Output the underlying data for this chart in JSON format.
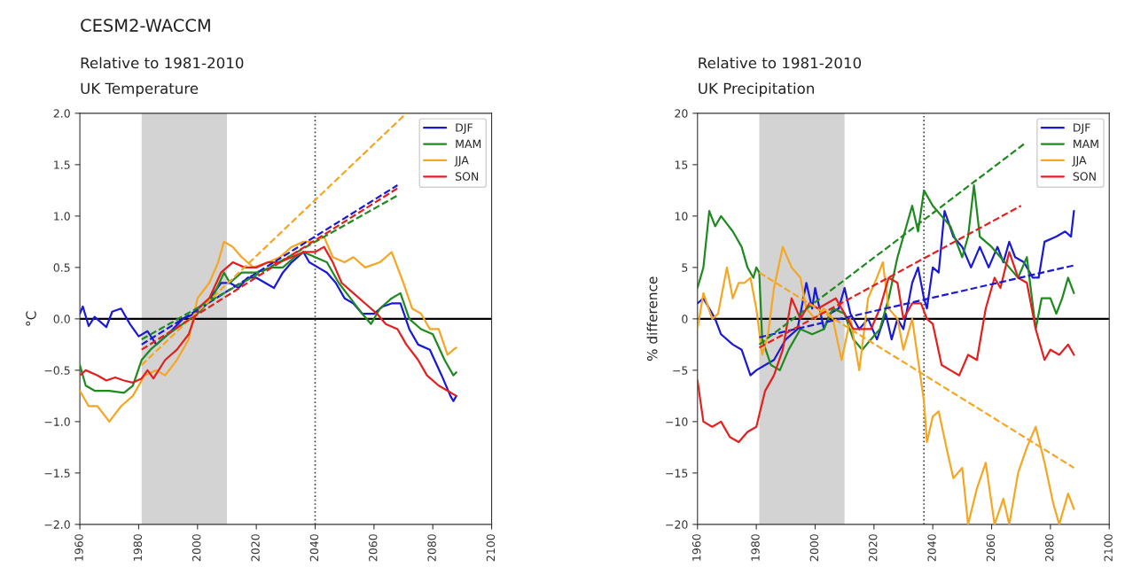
{
  "chart_data": [
    {
      "type": "line",
      "title": "CESM2-WACCM",
      "subtitle": "Relative to 1981-2010\nUK Temperature",
      "ylabel": "°C",
      "xlim": [
        1960,
        2100
      ],
      "xticks": [
        1960,
        1980,
        2000,
        2020,
        2040,
        2060,
        2080,
        2100
      ],
      "ylim": [
        -2.0,
        2.0
      ],
      "yticks": [
        {
          "value": -2.0,
          "label": "−2.0"
        },
        {
          "value": -1.5,
          "label": "−1.5"
        },
        {
          "value": -1.0,
          "label": "−1.0"
        },
        {
          "value": -0.5,
          "label": "−0.5"
        },
        {
          "value": 0.0,
          "label": "0.0"
        },
        {
          "value": 0.5,
          "label": "0.5"
        },
        {
          "value": 1.0,
          "label": "1.0"
        },
        {
          "value": 1.5,
          "label": "1.5"
        },
        {
          "value": 2.0,
          "label": "2.0"
        }
      ],
      "grid": false,
      "legend": "top right",
      "bands": [
        {
          "axis": "x",
          "from": 1981,
          "to": 2010,
          "color": "#d3d3d3"
        }
      ],
      "ref_lines": [
        {
          "axis": "y",
          "value": 0,
          "color": "#000000",
          "line_style": "solid"
        },
        {
          "axis": "x",
          "value": 2040,
          "color": "#404040",
          "line_style": "dotted"
        }
      ],
      "series": [
        {
          "name": "DJF",
          "color": "#1a1ad6",
          "line_style": "solid",
          "x": [
            1960,
            1961,
            1963,
            1965,
            1969,
            1971,
            1974,
            1977,
            1980,
            1983,
            1986,
            1990,
            1995,
            1999,
            2003,
            2008,
            2011,
            2014,
            2017,
            2020,
            2023,
            2026,
            2029,
            2032,
            2036,
            2038,
            2041,
            2044,
            2047,
            2050,
            2053,
            2056,
            2060,
            2063,
            2066,
            2069,
            2072,
            2075,
            2079,
            2083,
            2086,
            2087,
            2088
          ],
          "values": [
            0.05,
            0.12,
            -0.07,
            0.02,
            -0.08,
            0.07,
            0.1,
            -0.05,
            -0.17,
            -0.12,
            -0.25,
            -0.15,
            0.0,
            0.05,
            0.15,
            0.35,
            0.35,
            0.3,
            0.4,
            0.4,
            0.35,
            0.3,
            0.45,
            0.55,
            0.65,
            0.55,
            0.5,
            0.45,
            0.35,
            0.2,
            0.15,
            0.05,
            0.05,
            0.12,
            0.15,
            0.15,
            -0.1,
            -0.25,
            -0.3,
            -0.55,
            -0.75,
            -0.8,
            -0.75
          ]
        },
        {
          "name": "MAM",
          "color": "#1f8a1f",
          "line_style": "solid",
          "x": [
            1960,
            1962,
            1965,
            1970,
            1975,
            1978,
            1981,
            1984,
            1990,
            1995,
            2000,
            2005,
            2009,
            2011,
            2015,
            2020,
            2025,
            2029,
            2033,
            2036,
            2040,
            2044,
            2048,
            2052,
            2056,
            2059,
            2062,
            2066,
            2069,
            2072,
            2076,
            2080,
            2084,
            2087,
            2088
          ],
          "values": [
            -0.45,
            -0.65,
            -0.7,
            -0.7,
            -0.72,
            -0.65,
            -0.4,
            -0.3,
            -0.15,
            -0.05,
            0.05,
            0.2,
            0.45,
            0.35,
            0.45,
            0.45,
            0.5,
            0.5,
            0.6,
            0.65,
            0.6,
            0.55,
            0.35,
            0.2,
            0.05,
            -0.05,
            0.1,
            0.2,
            0.25,
            0.0,
            -0.1,
            -0.15,
            -0.4,
            -0.55,
            -0.52
          ]
        },
        {
          "name": "JJA",
          "color": "#f5a623",
          "line_style": "solid",
          "x": [
            1960,
            1963,
            1966,
            1970,
            1974,
            1978,
            1982,
            1986,
            1989,
            1993,
            1997,
            2000,
            2004,
            2007,
            2009,
            2012,
            2015,
            2019,
            2024,
            2028,
            2032,
            2036,
            2040,
            2043,
            2046,
            2050,
            2053,
            2057,
            2062,
            2066,
            2070,
            2073,
            2076,
            2079,
            2082,
            2085,
            2087,
            2088
          ],
          "values": [
            -0.7,
            -0.85,
            -0.85,
            -1.0,
            -0.85,
            -0.75,
            -0.55,
            -0.5,
            -0.55,
            -0.4,
            -0.2,
            0.2,
            0.35,
            0.55,
            0.75,
            0.7,
            0.6,
            0.5,
            0.55,
            0.6,
            0.7,
            0.75,
            0.75,
            0.8,
            0.6,
            0.55,
            0.6,
            0.5,
            0.55,
            0.65,
            0.35,
            0.1,
            0.05,
            -0.1,
            -0.1,
            -0.35,
            -0.3,
            -0.28
          ]
        },
        {
          "name": "SON",
          "color": "#e32020",
          "line_style": "solid",
          "x": [
            1960,
            1962,
            1966,
            1969,
            1972,
            1975,
            1978,
            1981,
            1983,
            1985,
            1989,
            1993,
            1997,
            2000,
            2004,
            2008,
            2012,
            2016,
            2020,
            2024,
            2028,
            2032,
            2036,
            2040,
            2043,
            2046,
            2049,
            2053,
            2057,
            2061,
            2064,
            2068,
            2071,
            2075,
            2078,
            2082,
            2085,
            2088
          ],
          "values": [
            -0.55,
            -0.5,
            -0.55,
            -0.6,
            -0.57,
            -0.6,
            -0.62,
            -0.58,
            -0.5,
            -0.58,
            -0.4,
            -0.3,
            -0.15,
            0.1,
            0.2,
            0.45,
            0.55,
            0.5,
            0.5,
            0.55,
            0.55,
            0.6,
            0.65,
            0.65,
            0.7,
            0.55,
            0.35,
            0.25,
            0.15,
            0.05,
            -0.05,
            -0.1,
            -0.25,
            -0.4,
            -0.55,
            -0.65,
            -0.7,
            -0.75
          ]
        },
        {
          "type": "line",
          "color": "#1a1ad6",
          "line_style": "dashed",
          "x": [
            1981,
            2068
          ],
          "values": [
            -0.25,
            1.3
          ]
        },
        {
          "type": "line",
          "color": "#1f8a1f",
          "line_style": "dashed",
          "x": [
            1981,
            2068
          ],
          "values": [
            -0.2,
            1.2
          ]
        },
        {
          "type": "line",
          "color": "#f5a623",
          "line_style": "dashed",
          "x": [
            1981,
            2071
          ],
          "values": [
            -0.45,
            2.0
          ]
        },
        {
          "type": "line",
          "color": "#e32020",
          "line_style": "dashed",
          "x": [
            1981,
            2068
          ],
          "values": [
            -0.3,
            1.27
          ]
        }
      ]
    },
    {
      "type": "line",
      "subtitle": "Relative to 1981-2010\nUK Precipitation",
      "ylabel": "% difference",
      "xlim": [
        1960,
        2100
      ],
      "xticks": [
        1960,
        1980,
        2000,
        2020,
        2040,
        2060,
        2080,
        2100
      ],
      "ylim": [
        -20,
        20
      ],
      "yticks": [
        {
          "value": -20,
          "label": "−20"
        },
        {
          "value": -15,
          "label": "−15"
        },
        {
          "value": -10,
          "label": "−10"
        },
        {
          "value": -5,
          "label": "−5"
        },
        0,
        5,
        10,
        15,
        20
      ],
      "grid": false,
      "legend": "top right",
      "bands": [
        {
          "axis": "x",
          "from": 1981,
          "to": 2010,
          "color": "#d3d3d3"
        }
      ],
      "ref_lines": [
        {
          "axis": "y",
          "value": 0,
          "color": "#000000",
          "line_style": "solid"
        },
        {
          "axis": "x",
          "value": 2037,
          "color": "#404040",
          "line_style": "dotted"
        }
      ],
      "series": [
        {
          "name": "DJF",
          "color": "#1a1ad6",
          "line_style": "solid",
          "x": [
            1960,
            1962,
            1966,
            1968,
            1972,
            1975,
            1978,
            1980,
            1983,
            1986,
            1990,
            1994,
            1997,
            1999,
            2000,
            2003,
            2005,
            2008,
            2010,
            2012,
            2015,
            2018,
            2021,
            2024,
            2026,
            2028,
            2030,
            2033,
            2035,
            2037,
            2038,
            2040,
            2042,
            2044,
            2047,
            2050,
            2053,
            2056,
            2059,
            2062,
            2064,
            2066,
            2068,
            2071,
            2074,
            2076,
            2078,
            2082,
            2085,
            2087,
            2088
          ],
          "values": [
            1.5,
            2,
            0,
            -1.5,
            -2.5,
            -3,
            -5.5,
            -5,
            -4.5,
            -4,
            -2,
            -1,
            3.5,
            1,
            3,
            -1,
            0.5,
            1,
            3,
            0.5,
            -1,
            0,
            -2,
            0.5,
            -2,
            0,
            -1,
            3.5,
            5,
            2,
            1,
            5,
            4.5,
            10.5,
            8,
            7,
            5,
            7,
            5,
            7,
            5.5,
            7.5,
            6,
            5.5,
            4,
            4,
            7.5,
            8,
            8.5,
            8,
            10.5
          ]
        },
        {
          "name": "MAM",
          "color": "#1f8a1f",
          "line_style": "solid",
          "x": [
            1960,
            1962,
            1964,
            1966,
            1968,
            1972,
            1975,
            1977,
            1979,
            1980,
            1981,
            1982,
            1985,
            1988,
            1991,
            1995,
            1999,
            2003,
            2006,
            2010,
            2013,
            2016,
            2019,
            2022,
            2025,
            2028,
            2031,
            2033,
            2035,
            2037,
            2040,
            2043,
            2046,
            2050,
            2052,
            2054,
            2056,
            2060,
            2063,
            2066,
            2069,
            2072,
            2075,
            2077,
            2080,
            2082,
            2084,
            2086,
            2088
          ],
          "values": [
            3,
            5,
            10.5,
            9,
            10,
            8.5,
            7,
            5,
            4,
            5,
            4.5,
            -2,
            -4.5,
            -5,
            -3,
            -1,
            -1.5,
            -1,
            1,
            0.5,
            -2,
            -3,
            -2,
            -1,
            2,
            6,
            9,
            11,
            8.5,
            12.5,
            11,
            10,
            9,
            6,
            8,
            13,
            8,
            7,
            6,
            5,
            4,
            6,
            -1,
            2,
            2,
            0.5,
            2,
            4,
            2.5
          ]
        },
        {
          "name": "JJA",
          "color": "#f5a623",
          "line_style": "solid",
          "x": [
            1960,
            1962,
            1965,
            1967,
            1970,
            1972,
            1974,
            1976,
            1978,
            1980,
            1982,
            1984,
            1986,
            1989,
            1992,
            1995,
            1997,
            2000,
            2003,
            2006,
            2009,
            2012,
            2015,
            2018,
            2021,
            2023,
            2025,
            2028,
            2030,
            2033,
            2035,
            2037,
            2038,
            2040,
            2042,
            2045,
            2047,
            2050,
            2052,
            2055,
            2058,
            2061,
            2064,
            2066,
            2069,
            2072,
            2075,
            2078,
            2081,
            2083,
            2086,
            2088
          ],
          "values": [
            -1,
            2.5,
            0,
            0.5,
            5,
            2,
            3.5,
            3.5,
            4,
            1,
            -3.5,
            -1.5,
            3,
            7,
            5,
            4,
            1,
            0,
            1,
            0,
            -4,
            0,
            -5,
            2,
            4,
            5.5,
            1,
            0,
            -3,
            0,
            -4,
            -8,
            -12,
            -9.5,
            -9,
            -13,
            -15.5,
            -14.5,
            -20,
            -16.5,
            -14,
            -20,
            -17.5,
            -20,
            -15,
            -12.5,
            -10.5,
            -14,
            -18,
            -20,
            -17,
            -18.5
          ]
        },
        {
          "name": "SON",
          "color": "#e32020",
          "line_style": "solid",
          "x": [
            1960,
            1962,
            1965,
            1968,
            1971,
            1974,
            1977,
            1980,
            1983,
            1986,
            1989,
            1992,
            1995,
            1998,
            2001,
            2004,
            2007,
            2010,
            2013,
            2016,
            2019,
            2022,
            2025,
            2028,
            2030,
            2033,
            2036,
            2038,
            2040,
            2043,
            2046,
            2049,
            2052,
            2055,
            2058,
            2061,
            2063,
            2066,
            2069,
            2072,
            2075,
            2078,
            2080,
            2083,
            2086,
            2088
          ],
          "values": [
            -6,
            -10,
            -10.5,
            -10,
            -11.5,
            -12,
            -11,
            -10.5,
            -7,
            -5.5,
            -3,
            2,
            0,
            1.5,
            1,
            1.5,
            2,
            0.5,
            -1,
            -1,
            -1,
            1,
            4,
            3.5,
            0,
            1.5,
            1.5,
            0,
            -0.5,
            -4.5,
            -5,
            -5.5,
            -3.5,
            -4,
            1,
            4,
            3,
            6.5,
            4,
            3.5,
            -1,
            -4,
            -3,
            -3.5,
            -2.5,
            -3.5
          ]
        },
        {
          "type": "line",
          "color": "#1a1ad6",
          "line_style": "dashed",
          "x": [
            1981,
            2088
          ],
          "values": [
            -1.8,
            5.2
          ]
        },
        {
          "type": "line",
          "color": "#1f8a1f",
          "line_style": "dashed",
          "x": [
            1981,
            2071
          ],
          "values": [
            -2.5,
            17
          ]
        },
        {
          "type": "line",
          "color": "#f5a623",
          "line_style": "dashed",
          "x": [
            1981,
            2088
          ],
          "values": [
            4.5,
            -14.5
          ]
        },
        {
          "type": "line",
          "color": "#e32020",
          "line_style": "dashed",
          "x": [
            1981,
            2070
          ],
          "values": [
            -2.8,
            11
          ]
        }
      ]
    }
  ]
}
